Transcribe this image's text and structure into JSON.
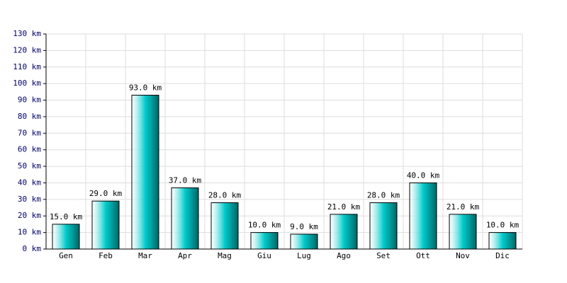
{
  "chart_data": {
    "type": "bar",
    "categories": [
      "Gen",
      "Feb",
      "Mar",
      "Apr",
      "Mag",
      "Giu",
      "Lug",
      "Ago",
      "Set",
      "Ott",
      "Nov",
      "Dic"
    ],
    "values": [
      15,
      29,
      93,
      37,
      28,
      10,
      9,
      21,
      28,
      40,
      21,
      10
    ],
    "value_labels": [
      "15.0 km",
      "29.0 km",
      "93.0 km",
      "37.0 km",
      "28.0 km",
      "10.0 km",
      "9.0 km",
      "21.0 km",
      "28.0 km",
      "40.0 km",
      "21.0 km",
      "10.0 km"
    ],
    "color": "#00cccc",
    "ylim": [
      0,
      130
    ],
    "yticks": [
      {
        "value": 0,
        "label": "0 km"
      },
      {
        "value": 10,
        "label": "10 km"
      },
      {
        "value": 20,
        "label": "20 km"
      },
      {
        "value": 30,
        "label": "30 km"
      },
      {
        "value": 40,
        "label": "40 km"
      },
      {
        "value": 50,
        "label": "50 km"
      },
      {
        "value": 60,
        "label": "60 km"
      },
      {
        "value": 70,
        "label": "70 km"
      },
      {
        "value": 80,
        "label": "80 km"
      },
      {
        "value": 90,
        "label": "90 km"
      },
      {
        "value": 100,
        "label": "100 km"
      },
      {
        "value": 110,
        "label": "110 km"
      },
      {
        "value": 120,
        "label": "120 km"
      },
      {
        "value": 130,
        "label": "130 km"
      }
    ],
    "grid": true
  }
}
